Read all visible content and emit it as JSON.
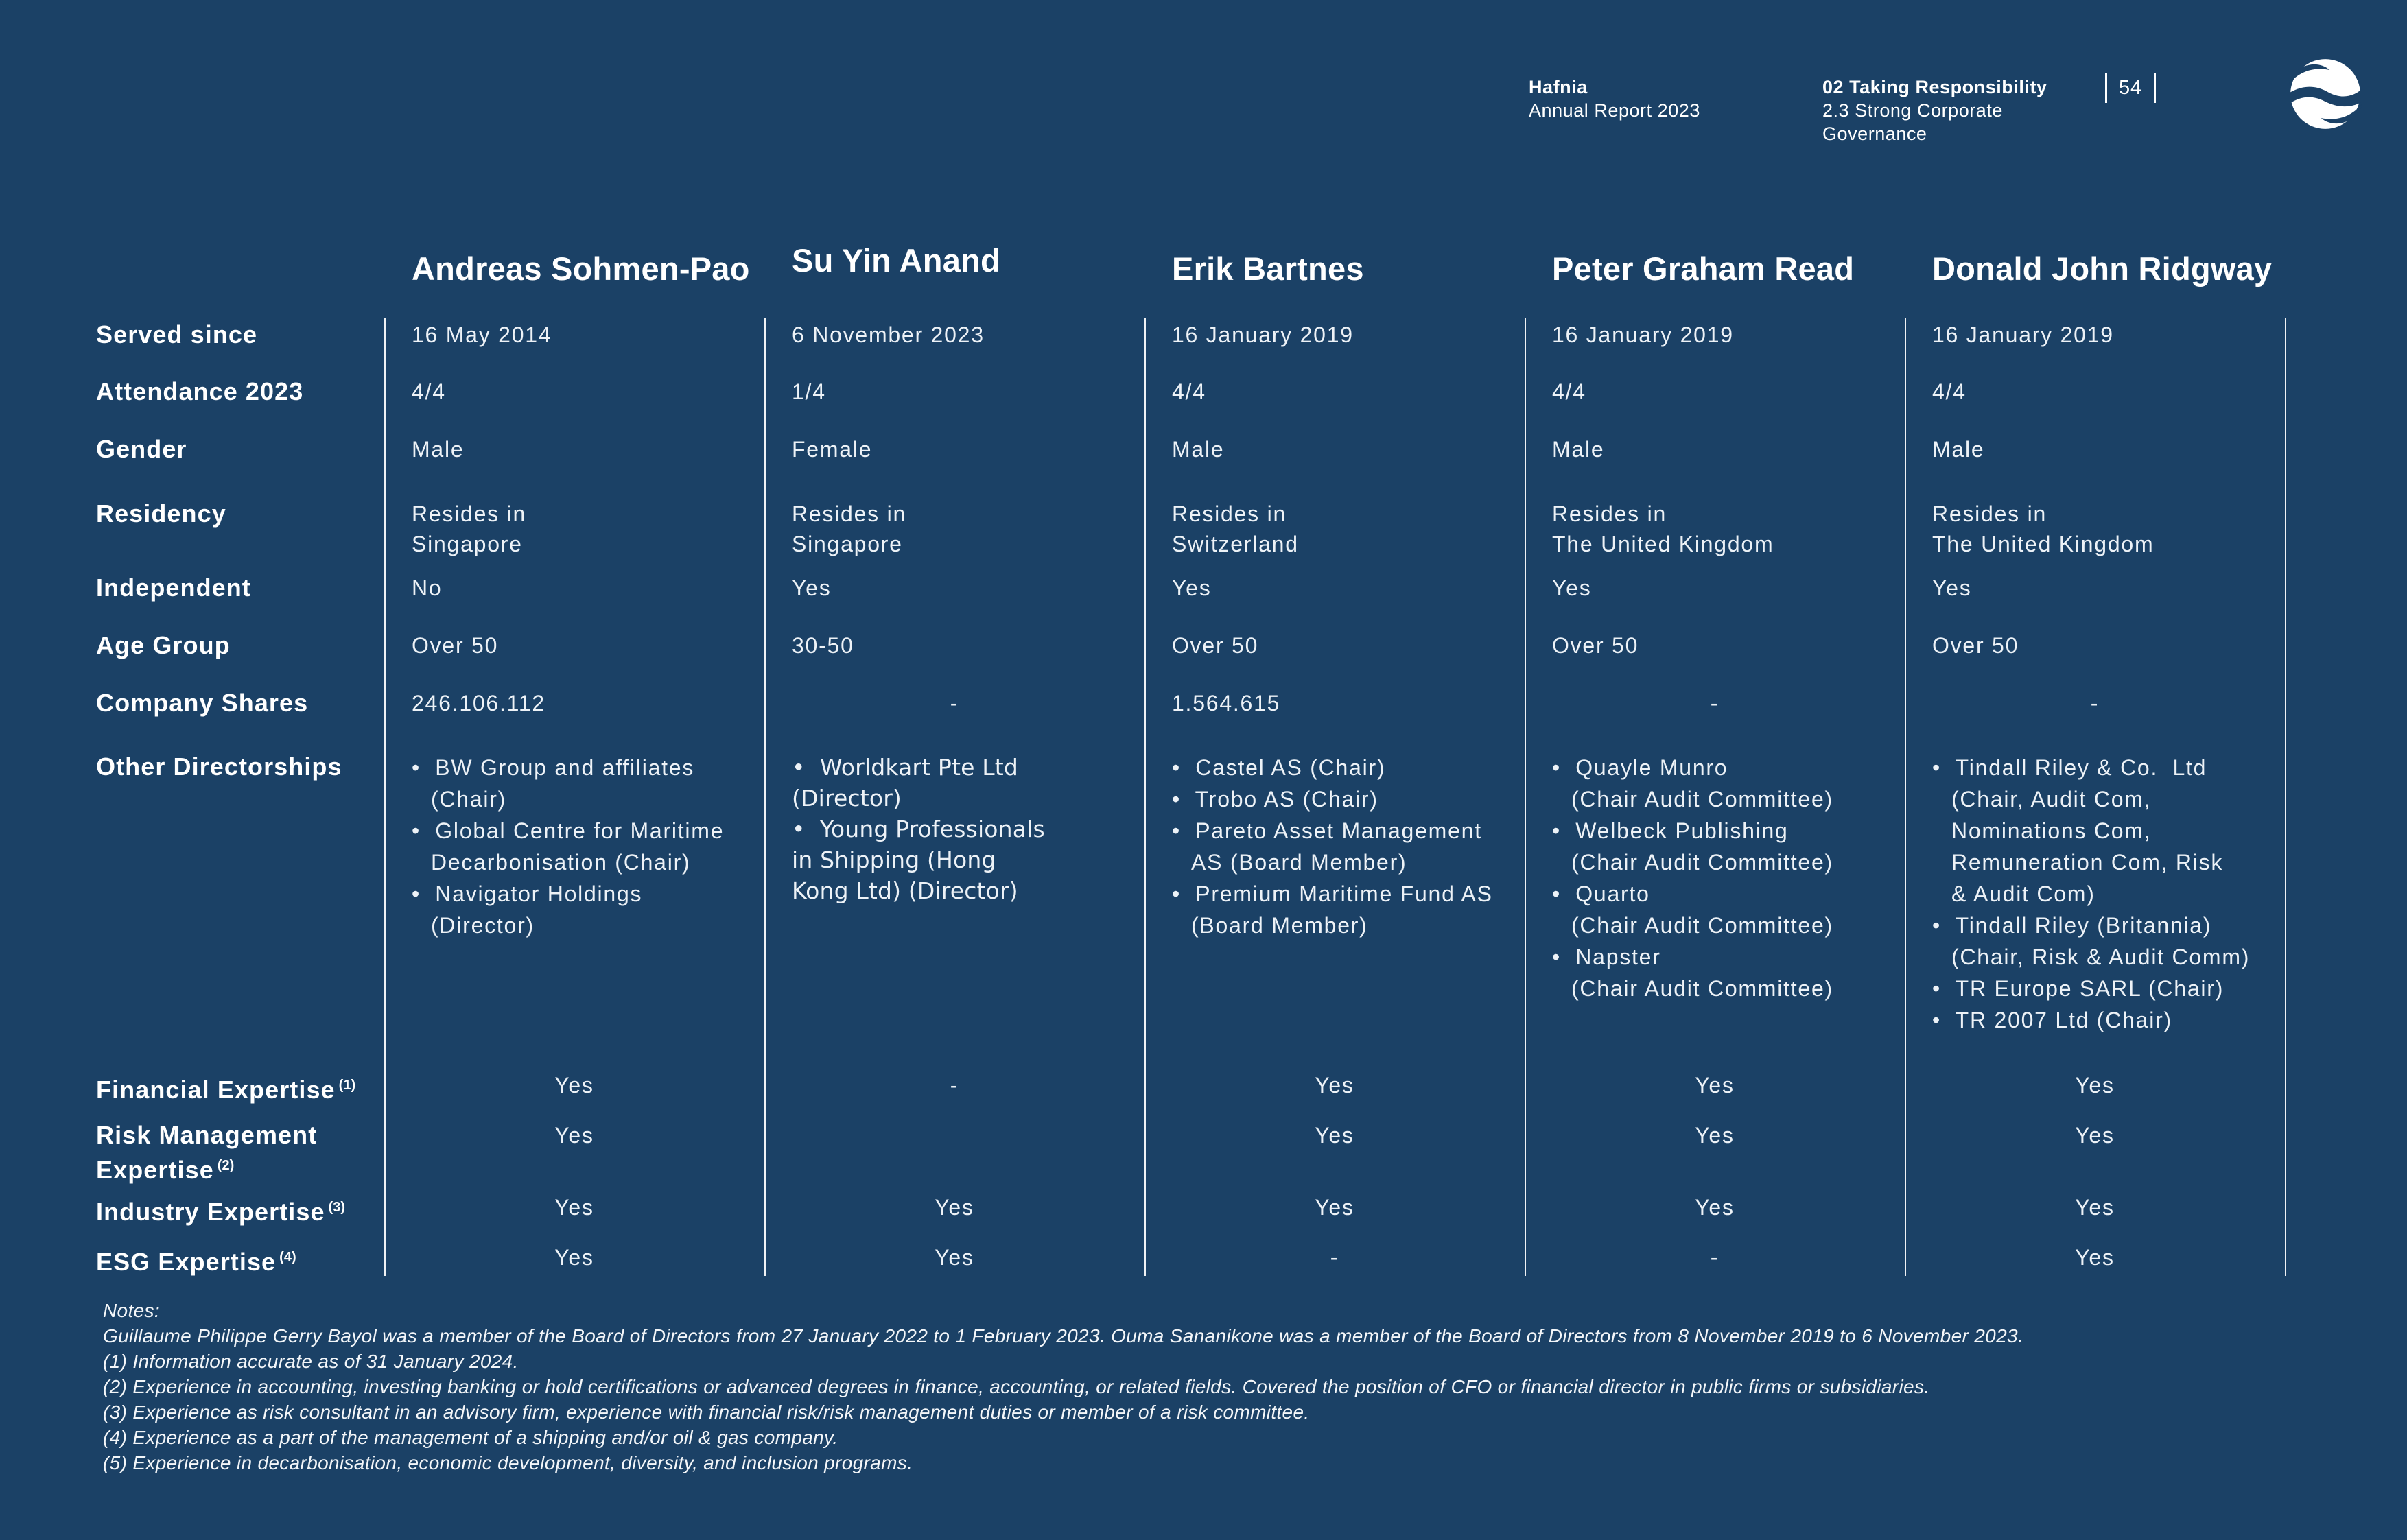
{
  "colors": {
    "background": "#1B4166",
    "text": "#FFFFFF",
    "muted_text": "#EDF2F7",
    "rule": "#FFFFFF"
  },
  "header": {
    "brand": {
      "title": "Hafnia",
      "subtitle": "Annual Report 2023"
    },
    "section": {
      "title": "02 Taking Responsibility",
      "line2": "2.3 Strong Corporate",
      "line3": "Governance"
    },
    "page_number": "54",
    "logo_icon": "hafnia-globe-logo"
  },
  "table": {
    "row_labels": {
      "served_since": "Served since",
      "attendance": "Attendance 2023",
      "gender": "Gender",
      "residency": "Residency",
      "independent": "Independent",
      "age_group": "Age Group",
      "company_shares": "Company Shares",
      "other_directorships": "Other Directorships",
      "financial_expertise": "Financial Expertise",
      "financial_expertise_note": "(1)",
      "risk_expertise_line1": "Risk Management",
      "risk_expertise_line2": "Expertise",
      "risk_expertise_note": "(2)",
      "industry_expertise": "Industry Expertise",
      "industry_expertise_note": "(3)",
      "esg_expertise": "ESG Expertise",
      "esg_expertise_note": "(4)"
    },
    "directors": [
      {
        "name": "Andreas Sohmen-Pao",
        "served_since": "16 May 2014",
        "attendance": "4/4",
        "gender": "Male",
        "residency": [
          "Resides in",
          "Singapore"
        ],
        "independent": "No",
        "age_group": "Over 50",
        "company_shares": "246.106.112",
        "directorships": [
          [
            "BW Group and affiliates",
            "(Chair)"
          ],
          [
            "Global Centre for Maritime",
            "Decarbonisation (Chair)"
          ],
          [
            "Navigator Holdings",
            "(Director)"
          ]
        ],
        "financial_expertise": "Yes",
        "risk_expertise": "Yes",
        "industry_expertise": "Yes",
        "esg_expertise": "Yes"
      },
      {
        "name": "Su Yin Anand",
        "served_since": "6 November 2023",
        "attendance": "1/4",
        "gender": "Female",
        "residency": [
          "Resides in",
          "Singapore"
        ],
        "independent": "Yes",
        "age_group": "30-50",
        "company_shares": "-",
        "directorships": [
          [
            "Worldkart Pte Ltd",
            "(Director)"
          ],
          [
            "Young Professionals",
            "in Shipping (Hong",
            "Kong Ltd) (Director)"
          ]
        ],
        "financial_expertise": "-",
        "risk_expertise": "",
        "industry_expertise": "Yes",
        "esg_expertise": "Yes"
      },
      {
        "name": "Erik Bartnes",
        "served_since": "16 January 2019",
        "attendance": "4/4",
        "gender": "Male",
        "residency": [
          "Resides in",
          "Switzerland"
        ],
        "independent": "Yes",
        "age_group": "Over 50",
        "company_shares": "1.564.615",
        "directorships": [
          [
            "Castel AS (Chair)"
          ],
          [
            "Trobo AS (Chair)"
          ],
          [
            "Pareto Asset Management",
            "AS (Board Member)"
          ],
          [
            "Premium Maritime Fund AS",
            "(Board Member)"
          ]
        ],
        "financial_expertise": "Yes",
        "risk_expertise": "Yes",
        "industry_expertise": "Yes",
        "esg_expertise": "-"
      },
      {
        "name": "Peter Graham Read",
        "served_since": "16 January 2019",
        "attendance": "4/4",
        "gender": "Male",
        "residency": [
          "Resides in",
          "The United Kingdom"
        ],
        "independent": "Yes",
        "age_group": "Over 50",
        "company_shares": "-",
        "directorships": [
          [
            "Quayle Munro",
            "(Chair Audit Committee)"
          ],
          [
            "Welbeck Publishing",
            "(Chair Audit Committee)"
          ],
          [
            "Quarto",
            "(Chair Audit Committee)"
          ],
          [
            "Napster",
            "(Chair Audit Committee)"
          ]
        ],
        "financial_expertise": "Yes",
        "risk_expertise": "Yes",
        "industry_expertise": "Yes",
        "esg_expertise": "-"
      },
      {
        "name": "Donald John Ridgway",
        "served_since": "16 January 2019",
        "attendance": "4/4",
        "gender": "Male",
        "residency": [
          "Resides in",
          "The United Kingdom"
        ],
        "independent": "Yes",
        "age_group": "Over 50",
        "company_shares": "-",
        "directorships": [
          [
            "Tindall Riley & Co.  Ltd",
            "(Chair, Audit Com,",
            "Nominations Com,",
            "Remuneration Com, Risk",
            "& Audit Com)"
          ],
          [
            "Tindall Riley (Britannia)",
            "(Chair, Risk & Audit Comm)"
          ],
          [
            "TR Europe SARL (Chair)"
          ],
          [
            "TR 2007 Ltd (Chair)"
          ]
        ],
        "financial_expertise": "Yes",
        "risk_expertise": "Yes",
        "industry_expertise": "Yes",
        "esg_expertise": "Yes"
      }
    ]
  },
  "notes": {
    "title": "Notes:",
    "lines": [
      "Guillaume Philippe Gerry Bayol was a member of the Board of Directors from 27 January 2022 to 1 February 2023. Ouma Sananikone was a member of the Board of Directors from 8 November 2019 to 6 November 2023.",
      "(1) Information accurate as of 31 January 2024.",
      "(2) Experience in accounting, investing banking or hold certifications or advanced degrees in finance, accounting, or related fields. Covered the position of CFO or financial director in public firms or subsidiaries.",
      "(3) Experience as risk consultant in an advisory firm, experience with financial risk/risk management duties or member of a risk committee.",
      "(4) Experience as a part of the management of a shipping and/or oil & gas company.",
      "(5) Experience in decarbonisation, economic development, diversity, and inclusion programs."
    ]
  }
}
